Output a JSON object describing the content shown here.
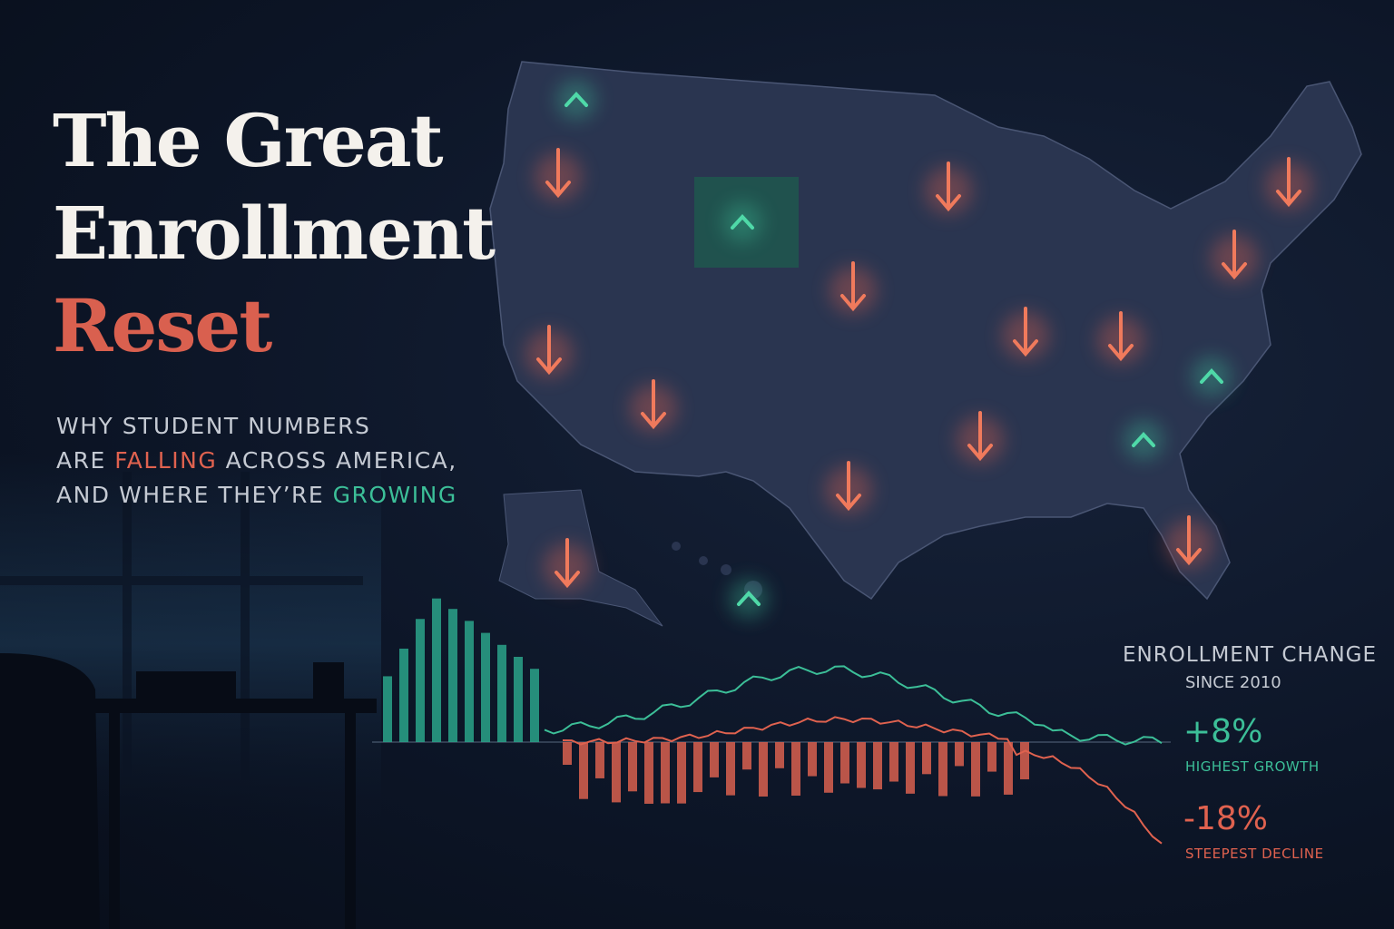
{
  "title": {
    "line1": "The Great",
    "line2": "Enrollment",
    "line3": "Reset"
  },
  "subtitle": {
    "line1": "WHY STUDENT NUMBERS",
    "line2": {
      "before": "ARE ",
      "highlight": "FALLING",
      "after": " ACROSS AMERICA,"
    },
    "line3": {
      "before": "AND WHERE THEY’RE ",
      "highlight": "GROWING"
    }
  },
  "stats": {
    "heading": "ENROLLMENT CHANGE",
    "subheading": "SINCE 2010",
    "growth": {
      "value": "+8%",
      "label": "HIGHEST GROWTH"
    },
    "decline": {
      "value": "-18%",
      "label": "STEEPEST DECLINE"
    }
  }
}
